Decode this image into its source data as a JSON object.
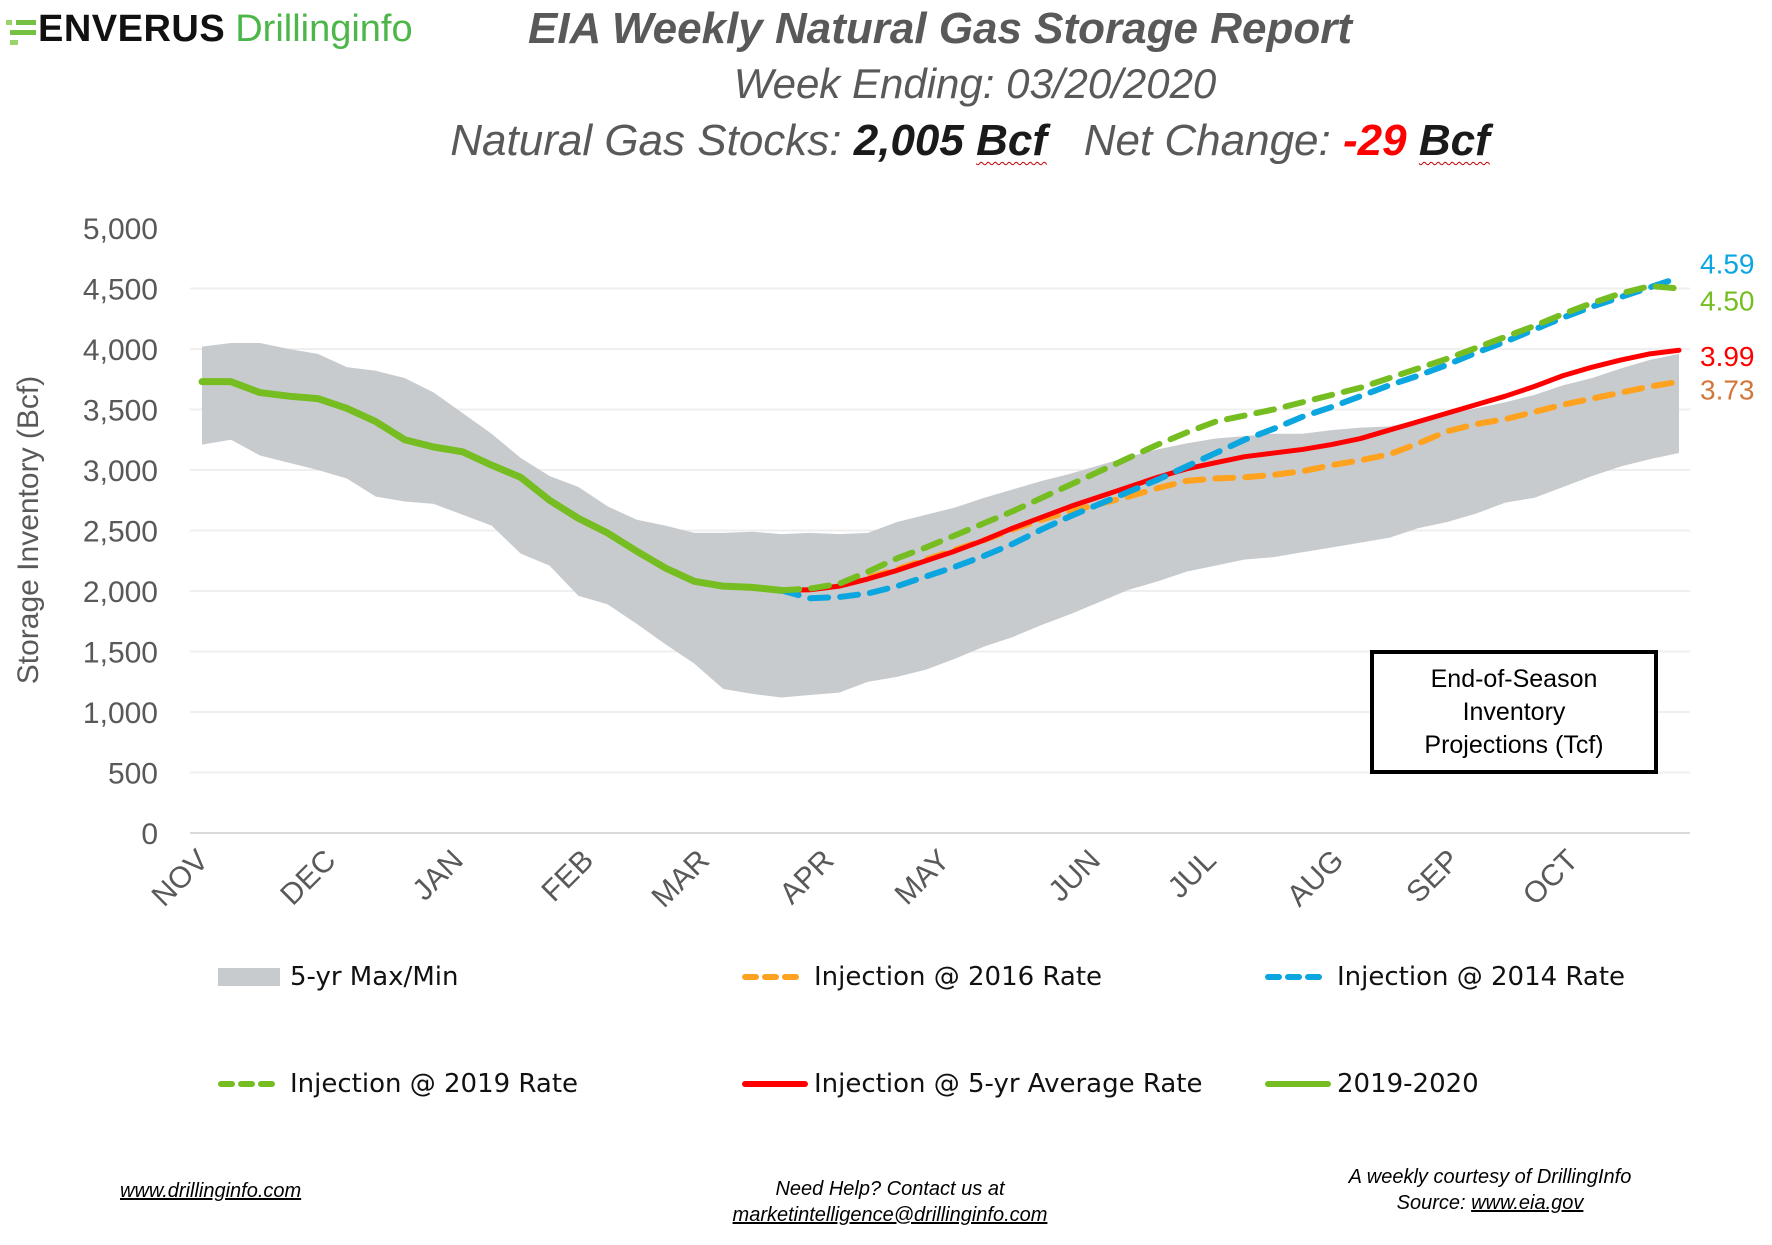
{
  "header": {
    "logo_brand": "ENVERUS",
    "logo_product": "Drillinginfo",
    "title": "EIA Weekly Natural Gas Storage Report",
    "week_ending_label": "Week Ending: 03/20/2020",
    "stocks_label": "Natural Gas Stocks:",
    "stocks_value": "2,005",
    "stocks_unit": "Bcf",
    "net_change_label": "Net Change:",
    "net_change_value": "-29",
    "net_change_unit": "Bcf"
  },
  "colors": {
    "band": "#c8cbce",
    "inj2016": "#ffa21f",
    "inj2014": "#0ba5e0",
    "inj2019": "#76bd22",
    "inj5yr": "#ff0000",
    "actual": "#76bd22",
    "end_label_2016": "#d2773b",
    "end_label_2014": "#0ba5e0",
    "end_label_2019": "#76bd22",
    "end_label_5yr": "#ff0000"
  },
  "projection_box": {
    "line1": "End-of-Season",
    "line2": "Inventory",
    "line3": "Projections (Tcf)"
  },
  "end_labels": [
    {
      "key": "inj2014",
      "text": "4.59",
      "value": 4590
    },
    {
      "key": "inj2019",
      "text": "4.50",
      "value": 4500
    },
    {
      "key": "inj5yr",
      "text": "3.99",
      "value": 3990
    },
    {
      "key": "inj2016",
      "text": "3.73",
      "value": 3730
    }
  ],
  "legend": [
    {
      "key": "band",
      "label": "5-yr Max/Min",
      "style": "area"
    },
    {
      "key": "inj2016",
      "label": "Injection @ 2016 Rate",
      "style": "dash"
    },
    {
      "key": "inj2014",
      "label": "Injection @ 2014 Rate",
      "style": "dash"
    },
    {
      "key": "inj2019",
      "label": "Injection @ 2019 Rate",
      "style": "dash"
    },
    {
      "key": "inj5yr",
      "label": "Injection @ 5-yr Average Rate",
      "style": "solid"
    },
    {
      "key": "actual",
      "label": "2019-2020",
      "style": "solid"
    }
  ],
  "footer": {
    "website": "www.drillinginfo.com",
    "help_line1": "Need Help? Contact us at",
    "help_email": "marketintelligence@drillinginfo.com",
    "courtesy": "A weekly courtesy of DrillingInfo",
    "source_label": "Source:",
    "source_link": "www.eia.gov"
  },
  "chart_data": {
    "type": "line",
    "title": "EIA Weekly Natural Gas Storage Report",
    "xlabel": "",
    "ylabel": "Storage Inventory (Bcf)",
    "ylim": [
      0,
      5000
    ],
    "yticks": [
      0,
      500,
      1000,
      1500,
      2000,
      2500,
      3000,
      3500,
      4000,
      4500,
      5000
    ],
    "ytick_labels": [
      "0",
      "500",
      "1,000",
      "1,500",
      "2,000",
      "2,500",
      "3,000",
      "3,500",
      "4,000",
      "4,500",
      "5,000"
    ],
    "grid": true,
    "legend_position": "bottom",
    "x_count": 52,
    "month_labels": [
      {
        "label": "NOV",
        "x": 0
      },
      {
        "label": "DEC",
        "x": 4.4
      },
      {
        "label": "JAN",
        "x": 8.8
      },
      {
        "label": "FEB",
        "x": 13.3
      },
      {
        "label": "MAR",
        "x": 17.3
      },
      {
        "label": "APR",
        "x": 21.6
      },
      {
        "label": "MAY",
        "x": 25.6
      },
      {
        "label": "JUN",
        "x": 30.8
      },
      {
        "label": "JUL",
        "x": 34.8
      },
      {
        "label": "AUG",
        "x": 39.2
      },
      {
        "label": "SEP",
        "x": 43.2
      },
      {
        "label": "OCT",
        "x": 47.3
      }
    ],
    "band": {
      "name": "5-yr Max/Min",
      "max": [
        4020,
        4050,
        4050,
        4000,
        3960,
        3850,
        3820,
        3760,
        3640,
        3470,
        3300,
        3100,
        2950,
        2860,
        2700,
        2590,
        2540,
        2480,
        2480,
        2490,
        2470,
        2480,
        2470,
        2480,
        2570,
        2630,
        2690,
        2770,
        2840,
        2910,
        2970,
        3040,
        3110,
        3170,
        3220,
        3260,
        3280,
        3300,
        3300,
        3330,
        3350,
        3360,
        3410,
        3460,
        3510,
        3560,
        3620,
        3700,
        3760,
        3840,
        3910,
        3960
      ],
      "min": [
        3210,
        3250,
        3120,
        3060,
        3000,
        2930,
        2780,
        2740,
        2720,
        2630,
        2540,
        2310,
        2210,
        1960,
        1890,
        1730,
        1560,
        1400,
        1190,
        1150,
        1120,
        1140,
        1160,
        1250,
        1290,
        1350,
        1440,
        1540,
        1620,
        1720,
        1810,
        1910,
        2010,
        2080,
        2160,
        2210,
        2260,
        2280,
        2320,
        2360,
        2400,
        2440,
        2520,
        2570,
        2640,
        2730,
        2770,
        2860,
        2950,
        3030,
        3090,
        3140
      ]
    },
    "series": [
      {
        "name": "2019-2020",
        "key": "actual",
        "start_index": 0,
        "values": [
          3730,
          3730,
          3640,
          3610,
          3590,
          3510,
          3400,
          3250,
          3190,
          3150,
          3040,
          2940,
          2750,
          2600,
          2480,
          2330,
          2190,
          2080,
          2040,
          2030,
          2005
        ]
      },
      {
        "name": "Injection @ 5-yr Average Rate",
        "key": "inj5yr",
        "start_index": 20,
        "values": [
          2005,
          2010,
          2040,
          2100,
          2170,
          2250,
          2330,
          2420,
          2520,
          2610,
          2700,
          2780,
          2860,
          2940,
          3010,
          3060,
          3110,
          3140,
          3170,
          3210,
          3260,
          3330,
          3400,
          3470,
          3540,
          3610,
          3690,
          3780,
          3850,
          3910,
          3960,
          3990
        ]
      },
      {
        "name": "Injection @ 2016 Rate",
        "key": "inj2016",
        "start_index": 20,
        "values": [
          2005,
          2020,
          2050,
          2110,
          2180,
          2260,
          2340,
          2420,
          2510,
          2590,
          2660,
          2720,
          2780,
          2850,
          2910,
          2930,
          2940,
          2960,
          2990,
          3040,
          3080,
          3130,
          3220,
          3320,
          3380,
          3420,
          3480,
          3540,
          3590,
          3640,
          3690,
          3730
        ]
      },
      {
        "name": "Injection @ 2014 Rate",
        "key": "inj2014",
        "start_index": 20,
        "values": [
          2005,
          1940,
          1950,
          1980,
          2040,
          2120,
          2200,
          2290,
          2390,
          2510,
          2620,
          2720,
          2820,
          2920,
          3030,
          3140,
          3250,
          3340,
          3440,
          3520,
          3610,
          3700,
          3780,
          3870,
          3970,
          4060,
          4160,
          4260,
          4350,
          4430,
          4510,
          4590
        ]
      },
      {
        "name": "Injection @ 2019 Rate",
        "key": "inj2019",
        "start_index": 20,
        "values": [
          2005,
          2020,
          2060,
          2160,
          2270,
          2360,
          2460,
          2560,
          2660,
          2770,
          2880,
          2990,
          3100,
          3210,
          3310,
          3400,
          3450,
          3500,
          3560,
          3620,
          3680,
          3760,
          3840,
          3920,
          4010,
          4100,
          4190,
          4290,
          4380,
          4460,
          4520,
          4500
        ]
      }
    ]
  }
}
